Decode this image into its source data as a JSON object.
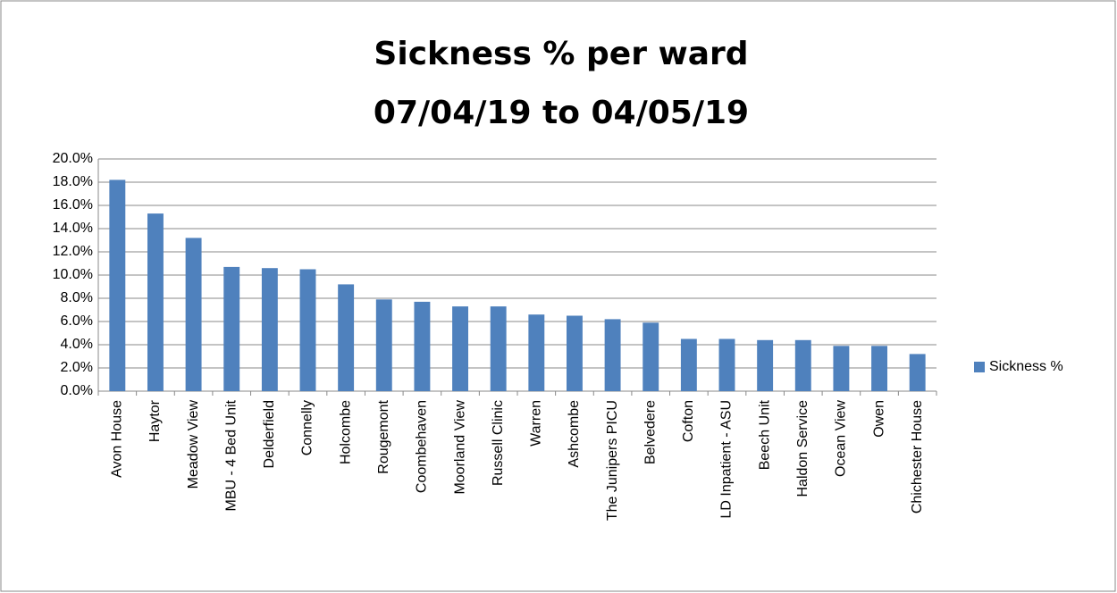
{
  "chart_data": {
    "type": "bar",
    "title": "Sickness % per ward",
    "subtitle": "07/04/19 to 04/05/19",
    "categories": [
      "Avon House",
      "Haytor",
      "Meadow View",
      "MBU - 4 Bed Unit",
      "Delderfield",
      "Connelly",
      "Holcombe",
      "Rougemont",
      "Coombehaven",
      "Moorland View",
      "Russell Clinic",
      "Warren",
      "Ashcombe",
      "The Junipers PICU",
      "Belvedere",
      "Cofton",
      "LD Inpatient - ASU",
      "Beech Unit",
      "Haldon Service",
      "Ocean View",
      "Owen",
      "Chichester House"
    ],
    "series": [
      {
        "name": "Sickness %",
        "color": "#4f81bd",
        "values": [
          18.2,
          15.3,
          13.2,
          10.7,
          10.6,
          10.5,
          9.2,
          7.9,
          7.7,
          7.3,
          7.3,
          6.6,
          6.5,
          6.2,
          5.9,
          4.5,
          4.5,
          4.4,
          4.4,
          3.9,
          3.9,
          3.2
        ]
      }
    ],
    "ylim": [
      0,
      20
    ],
    "yticks": [
      {
        "value": 0,
        "label": "0.0%"
      },
      {
        "value": 2,
        "label": "2.0%"
      },
      {
        "value": 4,
        "label": "4.0%"
      },
      {
        "value": 6,
        "label": "6.0%"
      },
      {
        "value": 8,
        "label": "8.0%"
      },
      {
        "value": 10,
        "label": "10.0%"
      },
      {
        "value": 12,
        "label": "12.0%"
      },
      {
        "value": 14,
        "label": "14.0%"
      },
      {
        "value": 16,
        "label": "16.0%"
      },
      {
        "value": 18,
        "label": "18.0%"
      },
      {
        "value": 20,
        "label": "20.0%"
      }
    ],
    "grid": true,
    "legend": "right"
  }
}
